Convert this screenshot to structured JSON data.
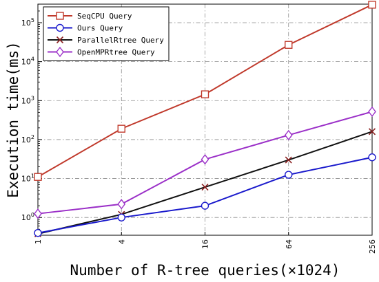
{
  "chart_data": {
    "type": "line",
    "title": "",
    "xlabel": "Number of R-tree queries(×1024)",
    "ylabel": "Execution time(ms)",
    "x_scale": "log2",
    "y_scale": "log10",
    "categories": [
      "1",
      "4",
      "16",
      "64",
      "256"
    ],
    "x": [
      1,
      4,
      16,
      64,
      256
    ],
    "y_ticks": [
      {
        "base": "10",
        "exp": "0",
        "value": 1
      },
      {
        "base": "10",
        "exp": "1",
        "value": 10
      },
      {
        "base": "10",
        "exp": "2",
        "value": 100
      },
      {
        "base": "10",
        "exp": "3",
        "value": 1000
      },
      {
        "base": "10",
        "exp": "4",
        "value": 10000
      },
      {
        "base": "10",
        "exp": "5",
        "value": 100000
      }
    ],
    "ylim": [
      0.35,
      300000
    ],
    "grid": true,
    "legend_position": "top-left",
    "series": [
      {
        "name": "SeqCPU Query",
        "color": "#c0392b",
        "marker": "square",
        "values": [
          11,
          190,
          1450,
          27000,
          290000
        ]
      },
      {
        "name": "Ours Query",
        "color": "#1a1acc",
        "marker": "circle",
        "values": [
          0.4,
          1.0,
          2.0,
          12.5,
          35
        ]
      },
      {
        "name": "ParallelRtree Query",
        "color": "#111111",
        "marker": "x",
        "values": [
          0.38,
          1.2,
          6.0,
          30,
          160
        ]
      },
      {
        "name": "OpenMPRtree Query",
        "color": "#9b30c8",
        "marker": "diamond",
        "values": [
          1.25,
          2.2,
          31,
          130,
          520
        ]
      }
    ]
  }
}
